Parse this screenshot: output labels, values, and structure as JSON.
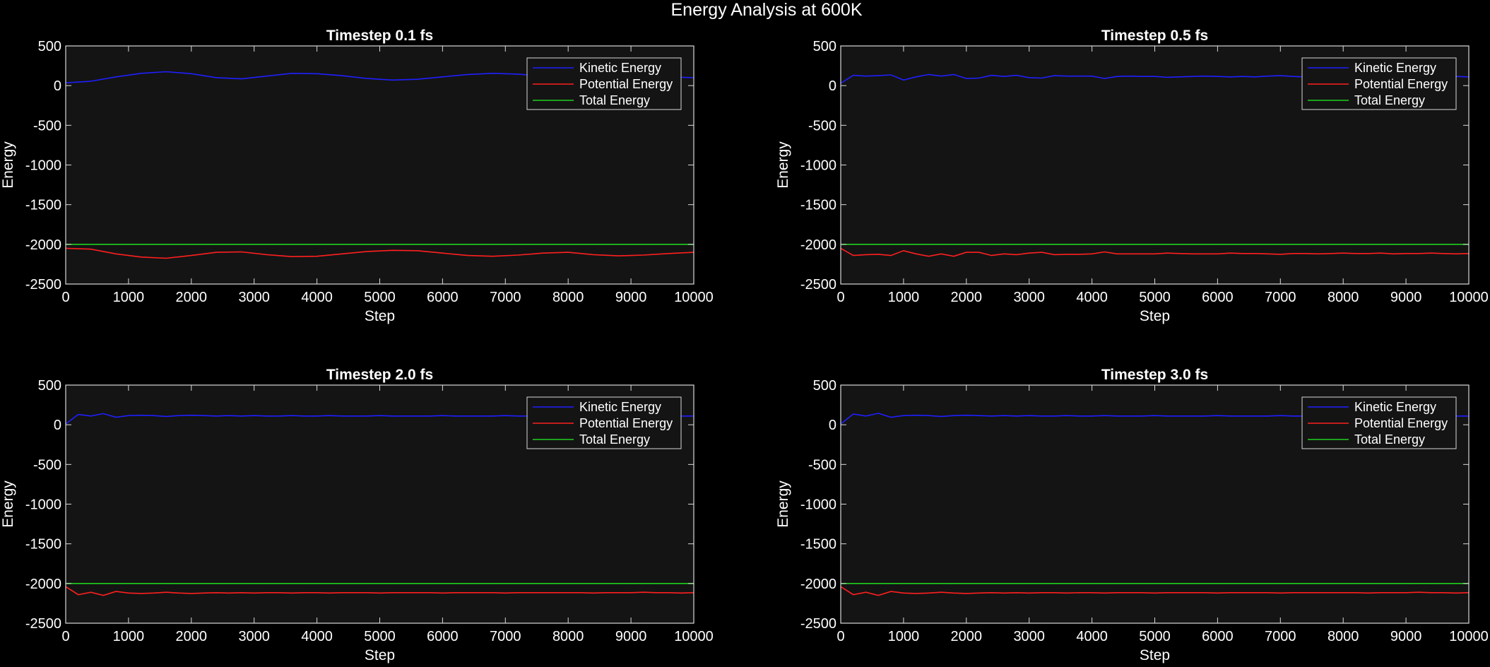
{
  "figure": {
    "title": "Energy Analysis at 600K",
    "background": "#000000",
    "axes_background": "#141414",
    "axes_color": "#d9d9d9"
  },
  "series_styles": [
    {
      "name": "Kinetic Energy",
      "color": "#1f1fff"
    },
    {
      "name": "Potential Energy",
      "color": "#ff1f1f"
    },
    {
      "name": "Total Energy",
      "color": "#1fd01f"
    }
  ],
  "chart_data": [
    {
      "type": "line",
      "title": "Timestep 0.1 fs",
      "xlabel": "Step",
      "ylabel": "Energy",
      "xlim": [
        0,
        10000
      ],
      "ylim": [
        -2500,
        500
      ],
      "xticks": [
        0,
        1000,
        2000,
        3000,
        4000,
        5000,
        6000,
        7000,
        8000,
        9000,
        10000
      ],
      "yticks": [
        500,
        0,
        -500,
        -1000,
        -1500,
        -2000,
        -2500
      ],
      "grid": false,
      "legend": "top-right",
      "x": [
        0,
        400,
        800,
        1200,
        1600,
        2000,
        2400,
        2800,
        3200,
        3600,
        4000,
        4400,
        4800,
        5200,
        5600,
        6000,
        6400,
        6800,
        7200,
        7600,
        8000,
        8400,
        8800,
        9200,
        9600,
        10000
      ],
      "series": [
        {
          "name": "Kinetic Energy",
          "values": [
            35,
            55,
            110,
            155,
            175,
            150,
            100,
            85,
            120,
            155,
            150,
            125,
            90,
            70,
            80,
            110,
            140,
            155,
            145,
            120,
            95,
            90,
            100,
            110,
            110,
            100
          ]
        },
        {
          "name": "Potential Energy",
          "values": [
            -2050,
            -2060,
            -2120,
            -2160,
            -2175,
            -2140,
            -2100,
            -2095,
            -2130,
            -2155,
            -2150,
            -2120,
            -2090,
            -2075,
            -2080,
            -2110,
            -2140,
            -2150,
            -2135,
            -2110,
            -2100,
            -2130,
            -2145,
            -2135,
            -2115,
            -2100
          ]
        },
        {
          "name": "Total Energy",
          "values": [
            -2000,
            -2000,
            -2000,
            -2000,
            -2000,
            -2000,
            -2000,
            -2000,
            -2000,
            -2000,
            -2000,
            -2000,
            -2000,
            -2000,
            -2000,
            -2000,
            -2000,
            -2000,
            -2000,
            -2000,
            -2000,
            -2000,
            -2000,
            -2000,
            -2000,
            -2000
          ]
        }
      ]
    },
    {
      "type": "line",
      "title": "Timestep 0.5 fs",
      "xlabel": "Step",
      "ylabel": "Energy",
      "xlim": [
        0,
        10000
      ],
      "ylim": [
        -2500,
        500
      ],
      "xticks": [
        0,
        1000,
        2000,
        3000,
        4000,
        5000,
        6000,
        7000,
        8000,
        9000,
        10000
      ],
      "yticks": [
        500,
        0,
        -500,
        -1000,
        -1500,
        -2000,
        -2500
      ],
      "grid": false,
      "legend": "top-right",
      "x": [
        0,
        200,
        400,
        600,
        800,
        1000,
        1200,
        1400,
        1600,
        1800,
        2000,
        2200,
        2400,
        2600,
        2800,
        3000,
        3200,
        3400,
        3600,
        3800,
        4000,
        4200,
        4400,
        4600,
        4800,
        5000,
        5200,
        5400,
        5600,
        5800,
        6000,
        6200,
        6400,
        6600,
        6800,
        7000,
        7200,
        7400,
        7600,
        7800,
        8000,
        8200,
        8400,
        8600,
        8800,
        9000,
        9200,
        9400,
        9600,
        9800,
        10000
      ],
      "series": [
        {
          "name": "Kinetic Energy",
          "values": [
            30,
            130,
            120,
            125,
            135,
            70,
            110,
            140,
            120,
            140,
            90,
            95,
            130,
            115,
            130,
            100,
            95,
            125,
            120,
            120,
            120,
            90,
            115,
            120,
            115,
            115,
            105,
            110,
            115,
            120,
            115,
            110,
            115,
            110,
            120,
            125,
            115,
            110,
            115,
            110,
            105,
            110,
            110,
            105,
            115,
            110,
            110,
            105,
            110,
            115,
            110
          ]
        },
        {
          "name": "Potential Energy",
          "values": [
            -2050,
            -2140,
            -2130,
            -2125,
            -2140,
            -2080,
            -2120,
            -2150,
            -2120,
            -2150,
            -2100,
            -2100,
            -2140,
            -2120,
            -2130,
            -2110,
            -2100,
            -2130,
            -2125,
            -2125,
            -2120,
            -2095,
            -2120,
            -2120,
            -2120,
            -2120,
            -2110,
            -2115,
            -2120,
            -2120,
            -2120,
            -2110,
            -2115,
            -2115,
            -2120,
            -2125,
            -2115,
            -2115,
            -2120,
            -2115,
            -2110,
            -2115,
            -2115,
            -2110,
            -2120,
            -2115,
            -2115,
            -2110,
            -2115,
            -2120,
            -2115
          ]
        },
        {
          "name": "Total Energy",
          "values": [
            -2000,
            -2000,
            -2000,
            -2000,
            -2000,
            -2000,
            -2000,
            -2000,
            -2000,
            -2000,
            -2000,
            -2000,
            -2000,
            -2000,
            -2000,
            -2000,
            -2000,
            -2000,
            -2000,
            -2000,
            -2000,
            -2000,
            -2000,
            -2000,
            -2000,
            -2000,
            -2000,
            -2000,
            -2000,
            -2000,
            -2000,
            -2000,
            -2000,
            -2000,
            -2000,
            -2000,
            -2000,
            -2000,
            -2000,
            -2000,
            -2000,
            -2000,
            -2000,
            -2000,
            -2000,
            -2000,
            -2000,
            -2000,
            -2000,
            -2000,
            -2000
          ]
        }
      ]
    },
    {
      "type": "line",
      "title": "Timestep 2.0 fs",
      "xlabel": "Step",
      "ylabel": "Energy",
      "xlim": [
        0,
        10000
      ],
      "ylim": [
        -2500,
        500
      ],
      "xticks": [
        0,
        1000,
        2000,
        3000,
        4000,
        5000,
        6000,
        7000,
        8000,
        9000,
        10000
      ],
      "yticks": [
        500,
        0,
        -500,
        -1000,
        -1500,
        -2000,
        -2500
      ],
      "grid": false,
      "legend": "top-right",
      "x": [
        0,
        200,
        400,
        600,
        800,
        1000,
        1200,
        1400,
        1600,
        1800,
        2000,
        2200,
        2400,
        2600,
        2800,
        3000,
        3200,
        3400,
        3600,
        3800,
        4000,
        4200,
        4400,
        4600,
        4800,
        5000,
        5200,
        5400,
        5600,
        5800,
        6000,
        6200,
        6400,
        6600,
        6800,
        7000,
        7200,
        7400,
        7600,
        7800,
        8000,
        8200,
        8400,
        8600,
        8800,
        9000,
        9200,
        9400,
        9600,
        9800,
        10000
      ],
      "series": [
        {
          "name": "Kinetic Energy",
          "values": [
            10,
            130,
            110,
            140,
            95,
            115,
            120,
            115,
            105,
            115,
            120,
            115,
            110,
            115,
            110,
            115,
            110,
            110,
            115,
            110,
            110,
            115,
            110,
            110,
            110,
            115,
            110,
            110,
            110,
            110,
            115,
            110,
            110,
            110,
            110,
            115,
            110,
            110,
            110,
            110,
            110,
            110,
            115,
            110,
            110,
            110,
            110,
            110,
            110,
            110,
            110
          ]
        },
        {
          "name": "Potential Energy",
          "values": [
            -2040,
            -2140,
            -2110,
            -2150,
            -2100,
            -2120,
            -2125,
            -2120,
            -2110,
            -2120,
            -2125,
            -2120,
            -2115,
            -2120,
            -2115,
            -2120,
            -2115,
            -2115,
            -2120,
            -2115,
            -2115,
            -2120,
            -2115,
            -2115,
            -2115,
            -2120,
            -2115,
            -2115,
            -2115,
            -2115,
            -2120,
            -2115,
            -2115,
            -2115,
            -2115,
            -2120,
            -2115,
            -2115,
            -2115,
            -2115,
            -2115,
            -2115,
            -2120,
            -2115,
            -2115,
            -2115,
            -2110,
            -2115,
            -2115,
            -2120,
            -2115
          ]
        },
        {
          "name": "Total Energy",
          "values": [
            -2000,
            -2000,
            -2000,
            -2000,
            -2000,
            -2000,
            -2000,
            -2000,
            -2000,
            -2000,
            -2000,
            -2000,
            -2000,
            -2000,
            -2000,
            -2000,
            -2000,
            -2000,
            -2000,
            -2000,
            -2000,
            -2000,
            -2000,
            -2000,
            -2000,
            -2000,
            -2000,
            -2000,
            -2000,
            -2000,
            -2000,
            -2000,
            -2000,
            -2000,
            -2000,
            -2000,
            -2000,
            -2000,
            -2000,
            -2000,
            -2000,
            -2000,
            -2000,
            -2000,
            -2000,
            -2000,
            -2000,
            -2000,
            -2000,
            -2000,
            -2000
          ]
        }
      ]
    },
    {
      "type": "line",
      "title": "Timestep 3.0 fs",
      "xlabel": "Step",
      "ylabel": "Energy",
      "xlim": [
        0,
        10000
      ],
      "ylim": [
        -2500,
        500
      ],
      "xticks": [
        0,
        1000,
        2000,
        3000,
        4000,
        5000,
        6000,
        7000,
        8000,
        9000,
        10000
      ],
      "yticks": [
        500,
        0,
        -500,
        -1000,
        -1500,
        -2000,
        -2500
      ],
      "grid": false,
      "legend": "top-right",
      "x": [
        0,
        200,
        400,
        600,
        800,
        1000,
        1200,
        1400,
        1600,
        1800,
        2000,
        2200,
        2400,
        2600,
        2800,
        3000,
        3200,
        3400,
        3600,
        3800,
        4000,
        4200,
        4400,
        4600,
        4800,
        5000,
        5200,
        5400,
        5600,
        5800,
        6000,
        6200,
        6400,
        6600,
        6800,
        7000,
        7200,
        7400,
        7600,
        7800,
        8000,
        8200,
        8400,
        8600,
        8800,
        9000,
        9200,
        9400,
        9600,
        9800,
        10000
      ],
      "series": [
        {
          "name": "Kinetic Energy",
          "values": [
            10,
            135,
            110,
            145,
            95,
            115,
            120,
            115,
            105,
            115,
            120,
            115,
            110,
            115,
            110,
            115,
            110,
            110,
            115,
            110,
            110,
            115,
            110,
            110,
            110,
            115,
            110,
            110,
            110,
            110,
            115,
            110,
            110,
            110,
            110,
            115,
            110,
            110,
            110,
            110,
            110,
            110,
            115,
            110,
            110,
            110,
            110,
            110,
            110,
            110,
            110
          ]
        },
        {
          "name": "Potential Energy",
          "values": [
            -2040,
            -2140,
            -2110,
            -2150,
            -2100,
            -2120,
            -2125,
            -2120,
            -2110,
            -2120,
            -2125,
            -2120,
            -2115,
            -2120,
            -2115,
            -2120,
            -2115,
            -2115,
            -2120,
            -2115,
            -2115,
            -2120,
            -2115,
            -2115,
            -2115,
            -2120,
            -2115,
            -2115,
            -2115,
            -2115,
            -2120,
            -2115,
            -2115,
            -2115,
            -2115,
            -2120,
            -2115,
            -2115,
            -2115,
            -2115,
            -2115,
            -2115,
            -2120,
            -2115,
            -2115,
            -2115,
            -2110,
            -2115,
            -2115,
            -2120,
            -2115
          ]
        },
        {
          "name": "Total Energy",
          "values": [
            -2000,
            -2000,
            -2000,
            -2000,
            -2000,
            -2000,
            -2000,
            -2000,
            -2000,
            -2000,
            -2000,
            -2000,
            -2000,
            -2000,
            -2000,
            -2000,
            -2000,
            -2000,
            -2000,
            -2000,
            -2000,
            -2000,
            -2000,
            -2000,
            -2000,
            -2000,
            -2000,
            -2000,
            -2000,
            -2000,
            -2000,
            -2000,
            -2000,
            -2000,
            -2000,
            -2000,
            -2000,
            -2000,
            -2000,
            -2000,
            -2000,
            -2000,
            -2000,
            -2000,
            -2000,
            -2000,
            -2000,
            -2000,
            -2000,
            -2000,
            -2000
          ]
        }
      ]
    }
  ]
}
